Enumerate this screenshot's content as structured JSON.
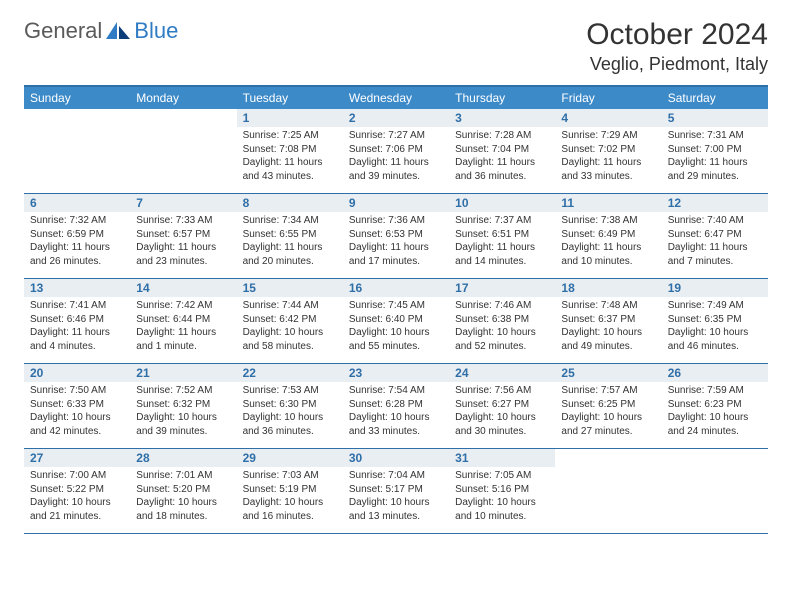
{
  "logo": {
    "text1": "General",
    "text2": "Blue"
  },
  "title": "October 2024",
  "location": "Veglio, Piedmont, Italy",
  "colors": {
    "header_bg": "#3d8ac9",
    "header_text": "#ffffff",
    "border": "#2f6fa8",
    "daynum_bg": "#e9eef2",
    "daynum_text": "#2f6fa8",
    "body_text": "#333333",
    "logo_gray": "#5a5a5a",
    "logo_blue": "#2f7cc4"
  },
  "day_names": [
    "Sunday",
    "Monday",
    "Tuesday",
    "Wednesday",
    "Thursday",
    "Friday",
    "Saturday"
  ],
  "weeks": [
    [
      {
        "n": "",
        "sr": "",
        "ss": "",
        "dl": ""
      },
      {
        "n": "",
        "sr": "",
        "ss": "",
        "dl": ""
      },
      {
        "n": "1",
        "sr": "Sunrise: 7:25 AM",
        "ss": "Sunset: 7:08 PM",
        "dl": "Daylight: 11 hours and 43 minutes."
      },
      {
        "n": "2",
        "sr": "Sunrise: 7:27 AM",
        "ss": "Sunset: 7:06 PM",
        "dl": "Daylight: 11 hours and 39 minutes."
      },
      {
        "n": "3",
        "sr": "Sunrise: 7:28 AM",
        "ss": "Sunset: 7:04 PM",
        "dl": "Daylight: 11 hours and 36 minutes."
      },
      {
        "n": "4",
        "sr": "Sunrise: 7:29 AM",
        "ss": "Sunset: 7:02 PM",
        "dl": "Daylight: 11 hours and 33 minutes."
      },
      {
        "n": "5",
        "sr": "Sunrise: 7:31 AM",
        "ss": "Sunset: 7:00 PM",
        "dl": "Daylight: 11 hours and 29 minutes."
      }
    ],
    [
      {
        "n": "6",
        "sr": "Sunrise: 7:32 AM",
        "ss": "Sunset: 6:59 PM",
        "dl": "Daylight: 11 hours and 26 minutes."
      },
      {
        "n": "7",
        "sr": "Sunrise: 7:33 AM",
        "ss": "Sunset: 6:57 PM",
        "dl": "Daylight: 11 hours and 23 minutes."
      },
      {
        "n": "8",
        "sr": "Sunrise: 7:34 AM",
        "ss": "Sunset: 6:55 PM",
        "dl": "Daylight: 11 hours and 20 minutes."
      },
      {
        "n": "9",
        "sr": "Sunrise: 7:36 AM",
        "ss": "Sunset: 6:53 PM",
        "dl": "Daylight: 11 hours and 17 minutes."
      },
      {
        "n": "10",
        "sr": "Sunrise: 7:37 AM",
        "ss": "Sunset: 6:51 PM",
        "dl": "Daylight: 11 hours and 14 minutes."
      },
      {
        "n": "11",
        "sr": "Sunrise: 7:38 AM",
        "ss": "Sunset: 6:49 PM",
        "dl": "Daylight: 11 hours and 10 minutes."
      },
      {
        "n": "12",
        "sr": "Sunrise: 7:40 AM",
        "ss": "Sunset: 6:47 PM",
        "dl": "Daylight: 11 hours and 7 minutes."
      }
    ],
    [
      {
        "n": "13",
        "sr": "Sunrise: 7:41 AM",
        "ss": "Sunset: 6:46 PM",
        "dl": "Daylight: 11 hours and 4 minutes."
      },
      {
        "n": "14",
        "sr": "Sunrise: 7:42 AM",
        "ss": "Sunset: 6:44 PM",
        "dl": "Daylight: 11 hours and 1 minute."
      },
      {
        "n": "15",
        "sr": "Sunrise: 7:44 AM",
        "ss": "Sunset: 6:42 PM",
        "dl": "Daylight: 10 hours and 58 minutes."
      },
      {
        "n": "16",
        "sr": "Sunrise: 7:45 AM",
        "ss": "Sunset: 6:40 PM",
        "dl": "Daylight: 10 hours and 55 minutes."
      },
      {
        "n": "17",
        "sr": "Sunrise: 7:46 AM",
        "ss": "Sunset: 6:38 PM",
        "dl": "Daylight: 10 hours and 52 minutes."
      },
      {
        "n": "18",
        "sr": "Sunrise: 7:48 AM",
        "ss": "Sunset: 6:37 PM",
        "dl": "Daylight: 10 hours and 49 minutes."
      },
      {
        "n": "19",
        "sr": "Sunrise: 7:49 AM",
        "ss": "Sunset: 6:35 PM",
        "dl": "Daylight: 10 hours and 46 minutes."
      }
    ],
    [
      {
        "n": "20",
        "sr": "Sunrise: 7:50 AM",
        "ss": "Sunset: 6:33 PM",
        "dl": "Daylight: 10 hours and 42 minutes."
      },
      {
        "n": "21",
        "sr": "Sunrise: 7:52 AM",
        "ss": "Sunset: 6:32 PM",
        "dl": "Daylight: 10 hours and 39 minutes."
      },
      {
        "n": "22",
        "sr": "Sunrise: 7:53 AM",
        "ss": "Sunset: 6:30 PM",
        "dl": "Daylight: 10 hours and 36 minutes."
      },
      {
        "n": "23",
        "sr": "Sunrise: 7:54 AM",
        "ss": "Sunset: 6:28 PM",
        "dl": "Daylight: 10 hours and 33 minutes."
      },
      {
        "n": "24",
        "sr": "Sunrise: 7:56 AM",
        "ss": "Sunset: 6:27 PM",
        "dl": "Daylight: 10 hours and 30 minutes."
      },
      {
        "n": "25",
        "sr": "Sunrise: 7:57 AM",
        "ss": "Sunset: 6:25 PM",
        "dl": "Daylight: 10 hours and 27 minutes."
      },
      {
        "n": "26",
        "sr": "Sunrise: 7:59 AM",
        "ss": "Sunset: 6:23 PM",
        "dl": "Daylight: 10 hours and 24 minutes."
      }
    ],
    [
      {
        "n": "27",
        "sr": "Sunrise: 7:00 AM",
        "ss": "Sunset: 5:22 PM",
        "dl": "Daylight: 10 hours and 21 minutes."
      },
      {
        "n": "28",
        "sr": "Sunrise: 7:01 AM",
        "ss": "Sunset: 5:20 PM",
        "dl": "Daylight: 10 hours and 18 minutes."
      },
      {
        "n": "29",
        "sr": "Sunrise: 7:03 AM",
        "ss": "Sunset: 5:19 PM",
        "dl": "Daylight: 10 hours and 16 minutes."
      },
      {
        "n": "30",
        "sr": "Sunrise: 7:04 AM",
        "ss": "Sunset: 5:17 PM",
        "dl": "Daylight: 10 hours and 13 minutes."
      },
      {
        "n": "31",
        "sr": "Sunrise: 7:05 AM",
        "ss": "Sunset: 5:16 PM",
        "dl": "Daylight: 10 hours and 10 minutes."
      },
      {
        "n": "",
        "sr": "",
        "ss": "",
        "dl": ""
      },
      {
        "n": "",
        "sr": "",
        "ss": "",
        "dl": ""
      }
    ]
  ]
}
